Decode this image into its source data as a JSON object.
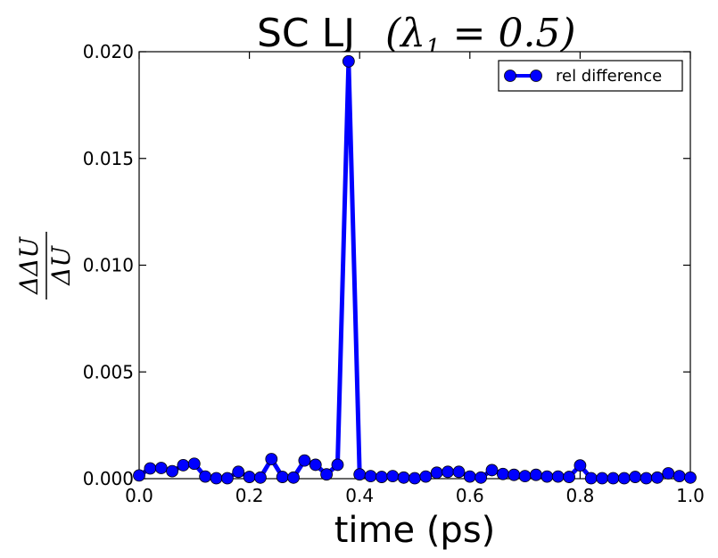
{
  "chart_data": {
    "type": "line",
    "title_prefix": "SC LJ",
    "title_math": "(λ",
    "title_math_sub": "1",
    "title_math_rest": " = 0.5)",
    "xlabel": "time (ps)",
    "ylabel_num": "ΔΔU",
    "ylabel_den": "ΔU",
    "xlim": [
      0.0,
      1.0
    ],
    "ylim": [
      0.0,
      0.02
    ],
    "x_ticks": [
      "0.0",
      "0.2",
      "0.4",
      "0.6",
      "0.8",
      "1.0"
    ],
    "y_ticks": [
      "0.000",
      "0.005",
      "0.010",
      "0.015",
      "0.020"
    ],
    "x_tick_values": [
      0.0,
      0.2,
      0.4,
      0.6,
      0.8,
      1.0
    ],
    "y_tick_values": [
      0.0,
      0.005,
      0.01,
      0.015,
      0.02
    ],
    "grid": false,
    "legend_position": "top-right",
    "series": [
      {
        "name": "rel difference",
        "color": "#0000ff",
        "x": [
          0.0,
          0.02,
          0.04,
          0.06,
          0.08,
          0.1,
          0.12,
          0.14,
          0.16,
          0.18,
          0.2,
          0.22,
          0.24,
          0.26,
          0.28,
          0.3,
          0.32,
          0.34,
          0.36,
          0.38,
          0.4,
          0.42,
          0.44,
          0.46,
          0.48,
          0.5,
          0.52,
          0.54,
          0.56,
          0.58,
          0.6,
          0.62,
          0.64,
          0.66,
          0.68,
          0.7,
          0.72,
          0.74,
          0.76,
          0.78,
          0.8,
          0.82,
          0.84,
          0.86,
          0.88,
          0.9,
          0.92,
          0.94,
          0.96,
          0.98,
          1.0
        ],
        "values": [
          0.00015,
          0.00048,
          0.0005,
          0.00035,
          0.00063,
          0.0007,
          0.0001,
          2e-05,
          2e-05,
          0.00032,
          8e-05,
          5e-05,
          0.00092,
          8e-05,
          5e-05,
          0.00085,
          0.00065,
          0.0002,
          0.00065,
          0.01955,
          0.0002,
          0.00012,
          8e-05,
          0.00012,
          5e-05,
          2e-05,
          0.0001,
          0.00028,
          0.00032,
          0.00032,
          0.0001,
          5e-05,
          0.0004,
          0.00022,
          0.00018,
          0.00012,
          0.00018,
          0.0001,
          0.0001,
          8e-05,
          0.00062,
          2e-05,
          2e-05,
          2e-05,
          2e-05,
          8e-05,
          2e-05,
          5e-05,
          0.00025,
          0.00012,
          5e-05
        ]
      }
    ]
  }
}
